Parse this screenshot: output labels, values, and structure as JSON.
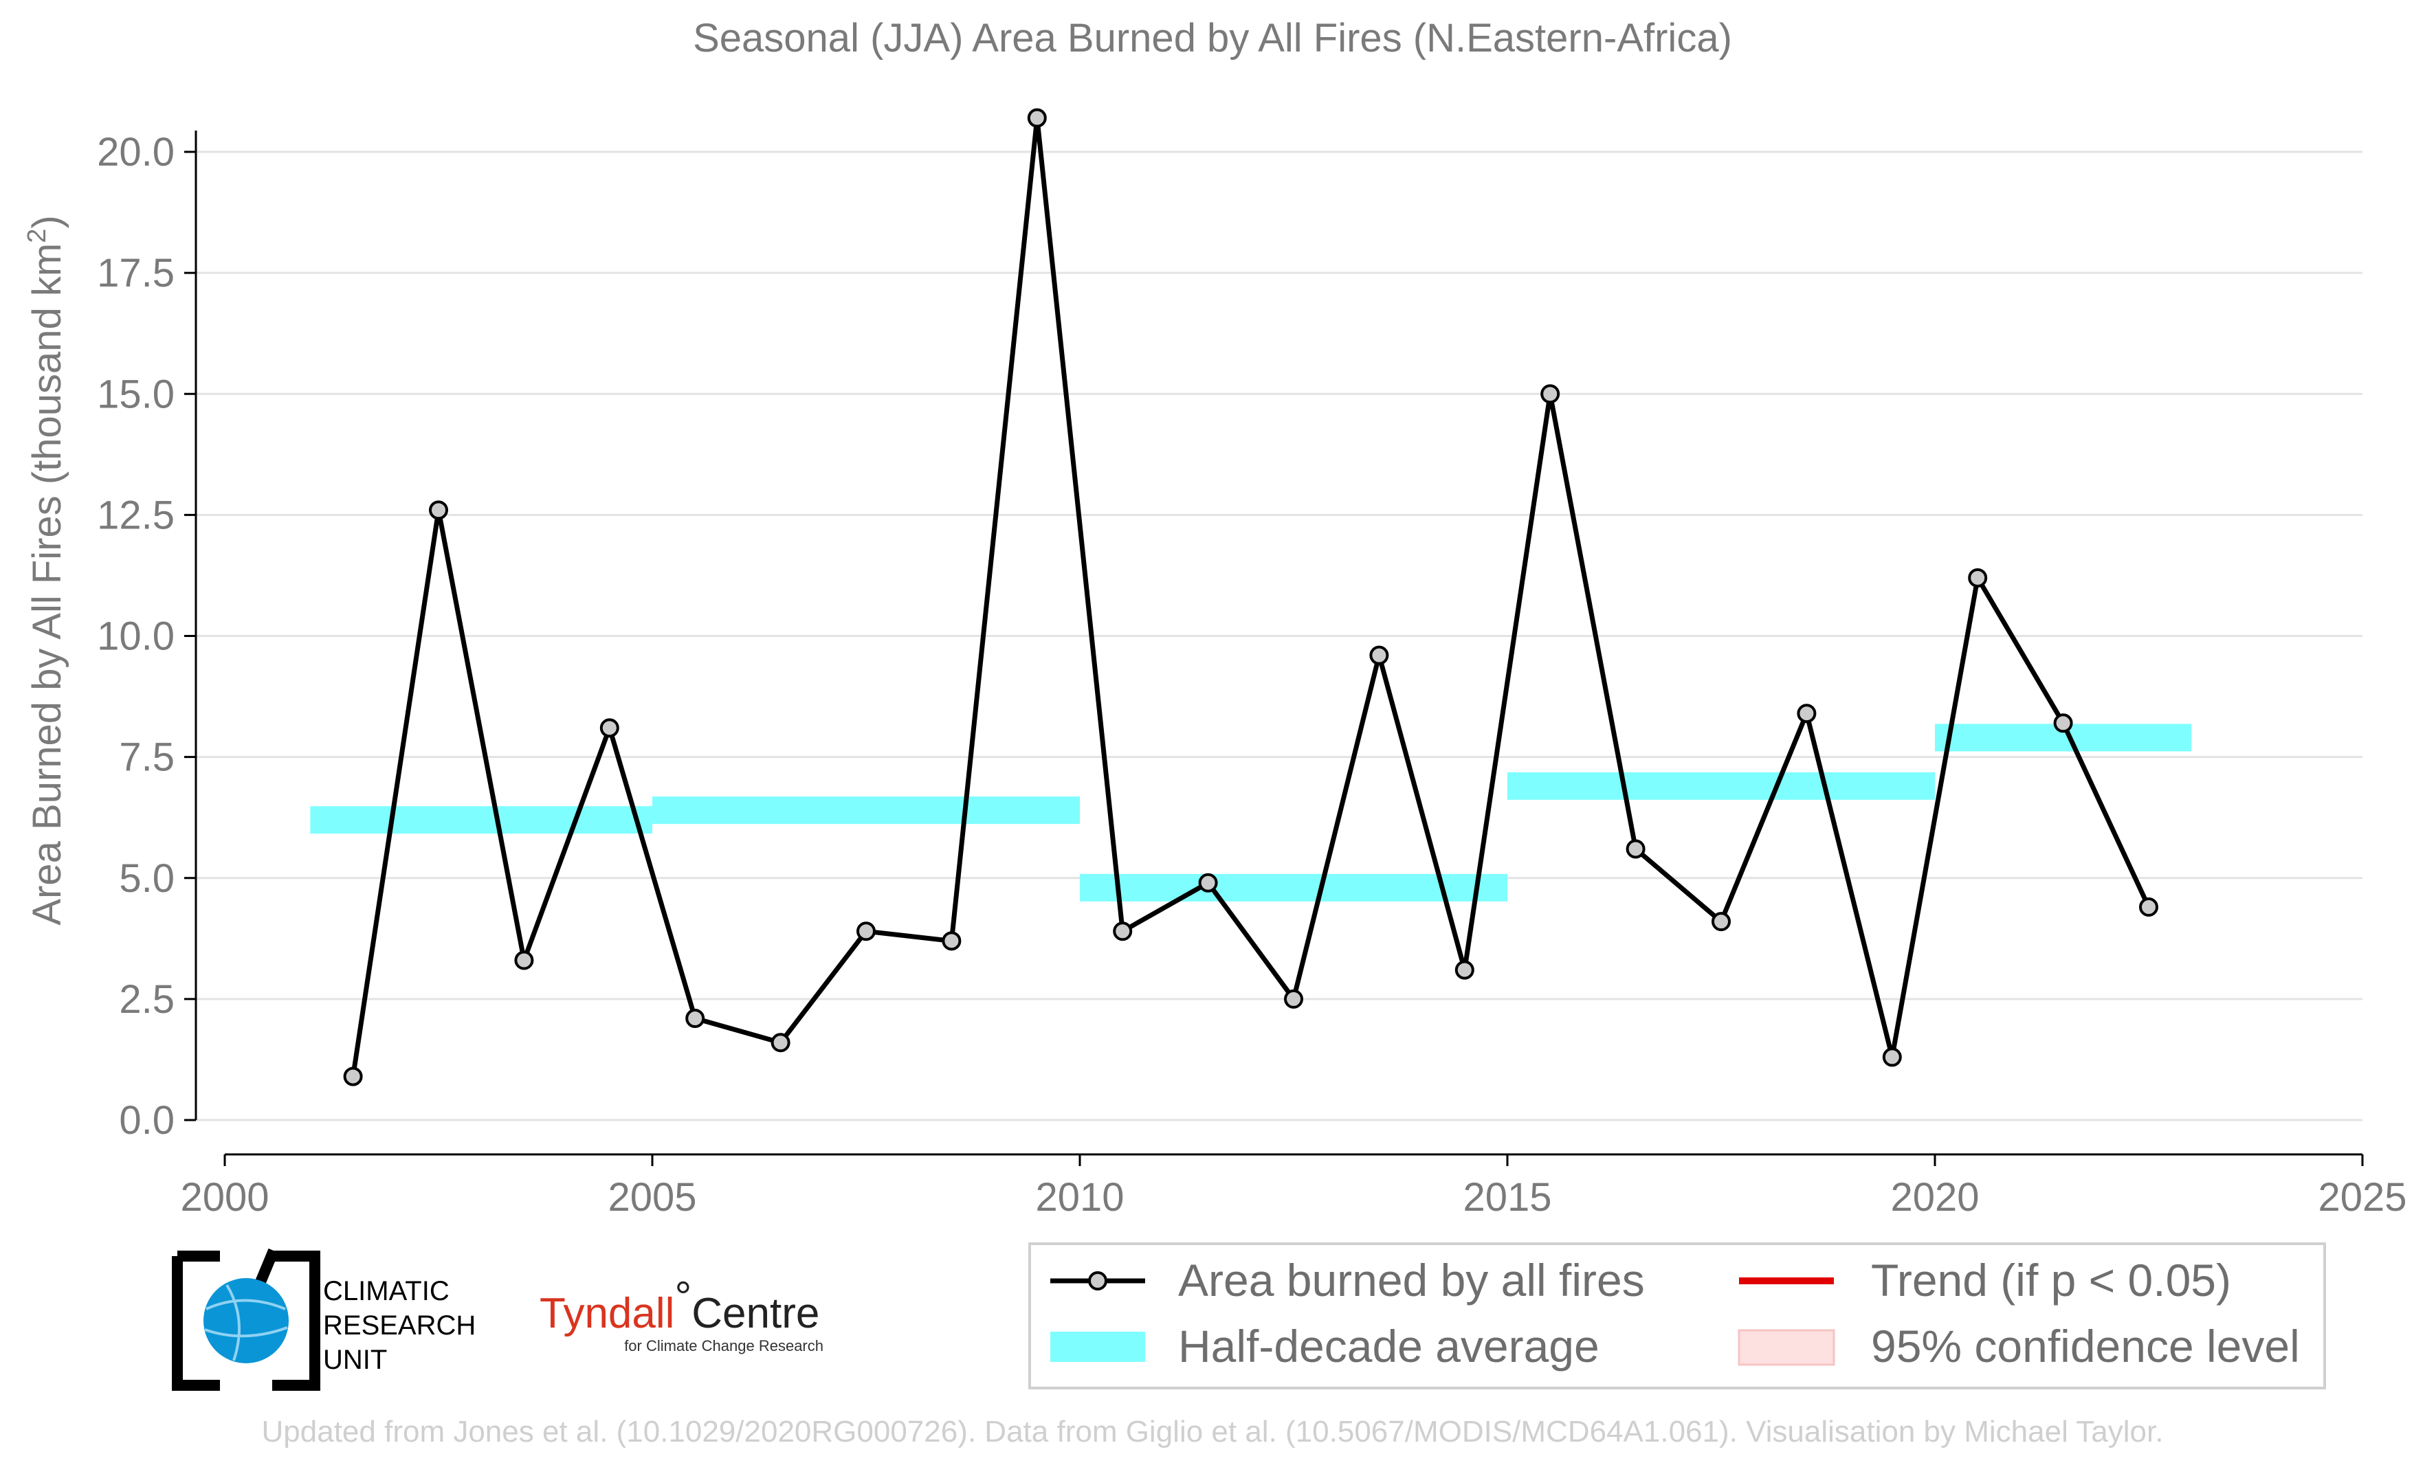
{
  "chart_data": {
    "type": "line",
    "title": "Seasonal (JJA) Area Burned by All Fires (N.Eastern-Africa)",
    "xlabel": "",
    "ylabel": "Area Burned by All Fires (thousand km",
    "ylabel_sup": "2",
    "ylabel_close": ")",
    "xlim": [
      2000,
      2025
    ],
    "ylim": [
      0,
      20
    ],
    "xticks": [
      "2000",
      "2005",
      "2010",
      "2015",
      "2020",
      "2025"
    ],
    "yticks": [
      "0.0",
      "2.5",
      "5.0",
      "7.5",
      "10.0",
      "12.5",
      "15.0",
      "17.5",
      "20.0"
    ],
    "grid": "horizontal",
    "series": [
      {
        "name": "Area burned by all fires",
        "color": "#000000",
        "x": [
          2001.5,
          2002.5,
          2003.5,
          2004.5,
          2005.5,
          2006.5,
          2007.5,
          2008.5,
          2009.5,
          2010.5,
          2011.5,
          2012.5,
          2013.5,
          2014.5,
          2015.5,
          2016.5,
          2017.5,
          2018.5,
          2019.5,
          2020.5,
          2021.5,
          2022.5
        ],
        "y": [
          0.9,
          12.6,
          3.3,
          8.1,
          2.1,
          1.6,
          3.9,
          3.7,
          20.7,
          3.9,
          4.9,
          2.5,
          9.6,
          3.1,
          15.0,
          5.6,
          4.1,
          8.4,
          1.3,
          11.2,
          8.2,
          4.4
        ]
      }
    ],
    "half_decade_averages": {
      "name": "Half-decade average",
      "color": "#7ffeff",
      "segments": [
        {
          "x_start": 2001.0,
          "x_end": 2005.0,
          "value": 6.2
        },
        {
          "x_start": 2005.0,
          "x_end": 2010.0,
          "value": 6.4
        },
        {
          "x_start": 2010.0,
          "x_end": 2015.0,
          "value": 4.8
        },
        {
          "x_start": 2015.0,
          "x_end": 2020.0,
          "value": 6.9
        },
        {
          "x_start": 2020.0,
          "x_end": 2023.0,
          "value": 7.9
        }
      ]
    },
    "legend": {
      "placement": "bottom-right",
      "entries": [
        {
          "label": "Area burned by all fires",
          "kind": "line-marker",
          "color": "#000000"
        },
        {
          "label": "Trend (if p < 0.05)",
          "kind": "line",
          "color": "#e00000"
        },
        {
          "label": "Half-decade average",
          "kind": "band",
          "color": "#7ffeff"
        },
        {
          "label": "95% confidence level",
          "kind": "patch",
          "color": "#fde0e0"
        }
      ]
    }
  },
  "logos": {
    "cru_line1": "CLIMATIC",
    "cru_line2": "RESEARCH",
    "cru_line3": "UNIT",
    "tyndall_red": "Tyndall",
    "tyndall_degree": "°",
    "tyndall_black": "Centre",
    "tyndall_sub": "for Climate Change Research"
  },
  "credit": "Updated from Jones et al. (10.1029/2020RG000726). Data from Giglio et al. (10.5067/MODIS/MCD64A1.061). Visualisation by Michael Taylor."
}
